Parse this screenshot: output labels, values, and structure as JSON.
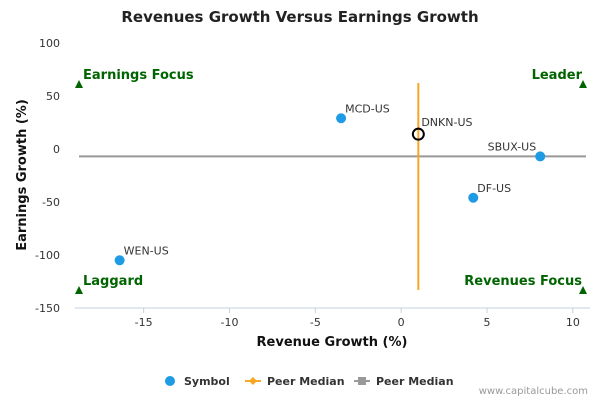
{
  "chart_data": {
    "type": "scatter",
    "title": "Revenues Growth Versus Earnings Growth",
    "xlabel": "Revenue Growth (%)",
    "ylabel": "Earnings Growth (%)",
    "xlim": [
      -19,
      11
    ],
    "ylim": [
      -150,
      100
    ],
    "x_ticks": [
      -15,
      -10,
      -5,
      0,
      5,
      10
    ],
    "y_ticks": [
      100,
      50,
      0,
      -50,
      -100,
      -150
    ],
    "grid": false,
    "legend_position": "bottom",
    "points": [
      {
        "label": "MCD-US",
        "x": -3.5,
        "y": 29
      },
      {
        "label": "DNKN-US",
        "x": 1.0,
        "y": 14,
        "highlight": true
      },
      {
        "label": "SBUX-US",
        "x": 8.1,
        "y": -7
      },
      {
        "label": "DF-US",
        "x": 4.2,
        "y": -46
      },
      {
        "label": "WEN-US",
        "x": -16.4,
        "y": -105
      }
    ],
    "peer_median_x": 1.0,
    "peer_median_y": -7,
    "quadrant_labels": {
      "top_left": "Earnings Focus",
      "top_right": "Leader",
      "bottom_left": "Laggard",
      "bottom_right": "Revenues Focus"
    },
    "legend": [
      {
        "name": "Symbol",
        "color": "#1f9be6"
      },
      {
        "name": "Peer Median",
        "color": "#f5a623"
      },
      {
        "name": "Peer Median",
        "color": "#999999"
      }
    ],
    "colors": {
      "point": "#1f9be6",
      "highlight_stroke": "#000000",
      "median_x_line": "#f5a623",
      "median_y_line": "#999999",
      "quadrant": "#006400"
    }
  },
  "footer": {
    "credit": "www.capitalcube.com"
  }
}
